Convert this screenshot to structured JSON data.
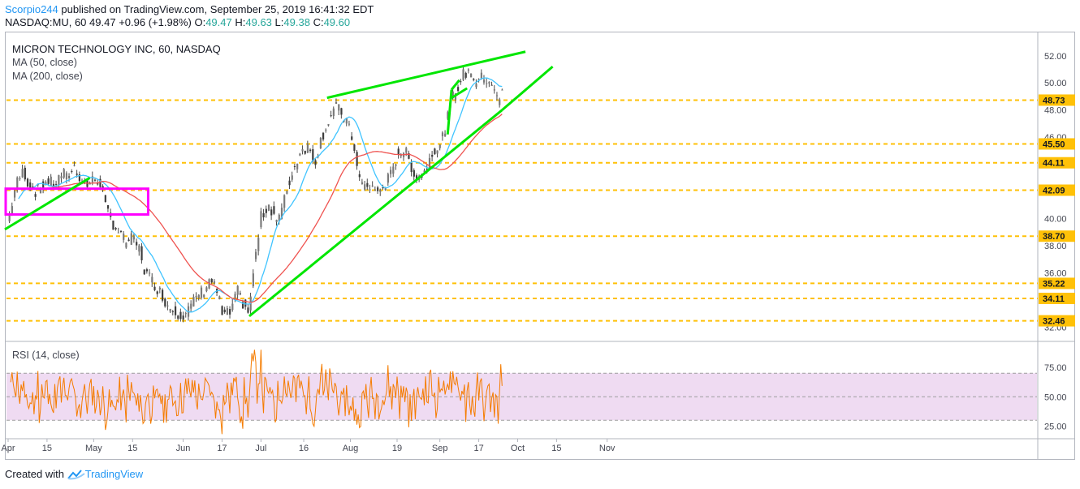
{
  "header": {
    "user": "Scorpio244",
    "published": " published on TradingView.com, September 25, 2019 16:41:32 EDT",
    "symbol": "NASDAQ:MU, 60",
    "last": "49.47",
    "change": "+0.96 (+1.98%)",
    "o_label": "O:",
    "o": "49.47",
    "h_label": "H:",
    "h": "49.63",
    "l_label": "L:",
    "l": "49.38",
    "c_label": "C:",
    "c": "49.60"
  },
  "legend": {
    "title": "MICRON TECHNOLOGY INC, 60, NASDAQ",
    "ma50": "MA (50, close)",
    "ma200": "MA (200, close)",
    "rsi": "RSI (14, close)"
  },
  "footer": {
    "created_with": "Created with",
    "brand": "TradingView"
  },
  "colors": {
    "candle_up": "#26a69a",
    "candle_down": "#ef5350",
    "candle_dark": "#4a4a4a",
    "ma50": "#40c4ff",
    "ma200": "#ef5350",
    "trendline": "#00e600",
    "box": "#ff00ff",
    "hline": "#ffc107",
    "rsi": "#f57c00",
    "rsi_band": "#e1bee7",
    "price_label_bg": "#ffc107"
  },
  "chart_data": {
    "type": "line",
    "title": "MICRON TECHNOLOGY INC, 60, NASDAQ",
    "x_ticks": [
      "Apr",
      "15",
      "May",
      "15",
      "Jun",
      "17",
      "Jul",
      "16",
      "Aug",
      "19",
      "Sep",
      "17",
      "Oct",
      "15",
      "Nov"
    ],
    "y_range": [
      31.0,
      53.6
    ],
    "y_ticks": [
      "52.00",
      "50.00",
      "48.00",
      "46.00",
      "40.00",
      "38.00",
      "36.00",
      "32.00"
    ],
    "horizontal_levels": [
      "48.73",
      "45.50",
      "44.11",
      "42.09",
      "38.70",
      "35.22",
      "34.11",
      "32.46"
    ],
    "price_series": [
      [
        "Apr 1",
        39.8
      ],
      [
        "Apr 3",
        42.5
      ],
      [
        "Apr 5",
        43.6
      ],
      [
        "Apr 8",
        42.6
      ],
      [
        "Apr 10",
        42.0
      ],
      [
        "Apr 12",
        42.4
      ],
      [
        "Apr 15",
        42.8
      ],
      [
        "Apr 17",
        42.5
      ],
      [
        "Apr 19",
        43.4
      ],
      [
        "Apr 22",
        43.0
      ],
      [
        "Apr 24",
        43.8
      ],
      [
        "Apr 26",
        42.8
      ],
      [
        "Apr 29",
        42.4
      ],
      [
        "May 1",
        42.9
      ],
      [
        "May 3",
        42.6
      ],
      [
        "May 6",
        40.8
      ],
      [
        "May 8",
        39.6
      ],
      [
        "May 10",
        38.8
      ],
      [
        "May 13",
        38.3
      ],
      [
        "May 15",
        38.5
      ],
      [
        "May 17",
        37.6
      ],
      [
        "May 20",
        36.2
      ],
      [
        "May 22",
        35.4
      ],
      [
        "May 24",
        34.6
      ],
      [
        "May 28",
        33.6
      ],
      [
        "May 31",
        33.0
      ],
      [
        "Jun 3",
        32.9
      ],
      [
        "Jun 5",
        33.5
      ],
      [
        "Jun 7",
        34.5
      ],
      [
        "Jun 10",
        34.6
      ],
      [
        "Jun 12",
        35.6
      ],
      [
        "Jun 14",
        34.4
      ],
      [
        "Jun 17",
        32.9
      ],
      [
        "Jun 19",
        33.0
      ],
      [
        "Jun 21",
        34.6
      ],
      [
        "Jun 24",
        33.9
      ],
      [
        "Jun 26",
        33.0
      ],
      [
        "Jun 27",
        36.0
      ],
      [
        "Jun 28",
        38.0
      ],
      [
        "Jul 1",
        40.1
      ],
      [
        "Jul 3",
        41.0
      ],
      [
        "Jul 5",
        40.0
      ],
      [
        "Jul 8",
        40.2
      ],
      [
        "Jul 10",
        42.5
      ],
      [
        "Jul 12",
        44.0
      ],
      [
        "Jul 15",
        45.0
      ],
      [
        "Jul 17",
        45.3
      ],
      [
        "Jul 19",
        44.2
      ],
      [
        "Jul 22",
        45.5
      ],
      [
        "Jul 24",
        47.0
      ],
      [
        "Jul 26",
        48.2
      ],
      [
        "Jul 29",
        48.0
      ],
      [
        "Jul 31",
        47.2
      ],
      [
        "Aug 2",
        45.3
      ],
      [
        "Aug 5",
        43.0
      ],
      [
        "Aug 7",
        42.2
      ],
      [
        "Aug 9",
        42.4
      ],
      [
        "Aug 12",
        41.8
      ],
      [
        "Aug 14",
        42.6
      ],
      [
        "Aug 16",
        43.5
      ],
      [
        "Aug 19",
        44.8
      ],
      [
        "Aug 21",
        45.0
      ],
      [
        "Aug 23",
        43.6
      ],
      [
        "Aug 26",
        43.0
      ],
      [
        "Aug 28",
        43.4
      ],
      [
        "Aug 30",
        45.0
      ],
      [
        "Sep 3",
        45.3
      ],
      [
        "Sep 5",
        47.4
      ],
      [
        "Sep 6",
        48.8
      ],
      [
        "Sep 9",
        49.4
      ],
      [
        "Sep 11",
        50.6
      ],
      [
        "Sep 13",
        50.9
      ],
      [
        "Sep 16",
        50.1
      ],
      [
        "Sep 18",
        50.4
      ],
      [
        "Sep 20",
        50.2
      ],
      [
        "Sep 23",
        49.6
      ],
      [
        "Sep 24",
        48.4
      ],
      [
        "Sep 25",
        49.5
      ]
    ],
    "rsi_range": [
      15,
      95
    ],
    "rsi_ticks": [
      "75.00",
      "50.00",
      "25.00"
    ],
    "rsi_band": [
      30,
      70
    ]
  }
}
